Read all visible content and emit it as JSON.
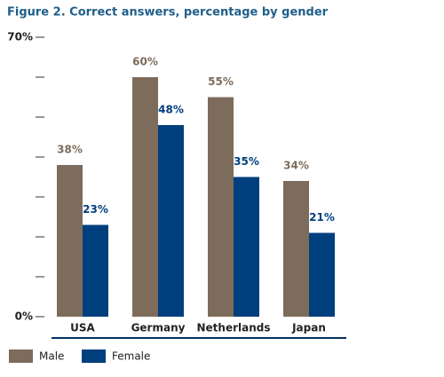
{
  "chart_data": {
    "type": "bar",
    "title": "Figure 2. Correct answers, percentage by gender",
    "categories": [
      "USA",
      "Germany",
      "Netherlands",
      "Japan"
    ],
    "series": [
      {
        "name": "Male",
        "color": "#7d6b5b",
        "values": [
          38,
          60,
          55,
          34
        ],
        "value_labels": [
          "38%",
          "60%",
          "55%",
          "34%"
        ]
      },
      {
        "name": "Female",
        "color": "#003f7d",
        "values": [
          23,
          48,
          35,
          21
        ],
        "value_labels": [
          "23%",
          "48%",
          "35%",
          "21%"
        ]
      }
    ],
    "ylim": [
      0,
      70
    ],
    "yticks": [
      {
        "value": 0,
        "label": "0%"
      },
      {
        "value": 10,
        "label": null
      },
      {
        "value": 20,
        "label": null
      },
      {
        "value": 30,
        "label": null
      },
      {
        "value": 40,
        "label": null
      },
      {
        "value": 50,
        "label": null
      },
      {
        "value": 60,
        "label": null
      },
      {
        "value": 70,
        "label": "70%"
      }
    ],
    "legend": "bottom-left"
  }
}
